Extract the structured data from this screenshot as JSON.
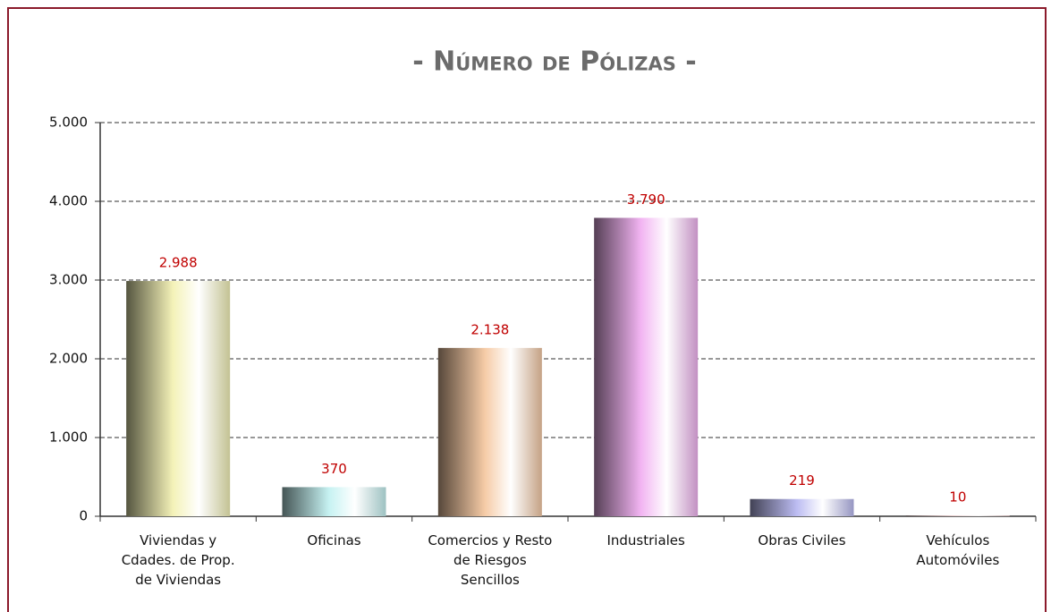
{
  "chart_data": {
    "type": "bar",
    "title": "- Número de Pólizas -",
    "categories": [
      "Viviendas y Cdades. de Prop. de Viviendas",
      "Oficinas",
      "Comercios y Resto de Riesgos Sencillos",
      "Industriales",
      "Obras Civiles",
      "Vehículos Automóviles"
    ],
    "values": [
      2988,
      370,
      2138,
      3790,
      219,
      10
    ],
    "value_labels": [
      "2.988",
      "370",
      "2.138",
      "3.790",
      "219",
      "10"
    ],
    "colors": [
      "#f4f2b8",
      "#c6f2f2",
      "#f6cba6",
      "#f2b4f2",
      "#bcbcf2",
      "#f0d0d0"
    ],
    "ylim": [
      0,
      5000
    ],
    "yticks": [
      0,
      {
        "value": 1000,
        "label": "1.000"
      },
      {
        "value": 2000,
        "label": "2.000"
      },
      {
        "value": 3000,
        "label": "3.000"
      },
      {
        "value": 4000,
        "label": "4.000"
      },
      {
        "value": 5000,
        "label": "5.000"
      }
    ],
    "grid": true
  }
}
